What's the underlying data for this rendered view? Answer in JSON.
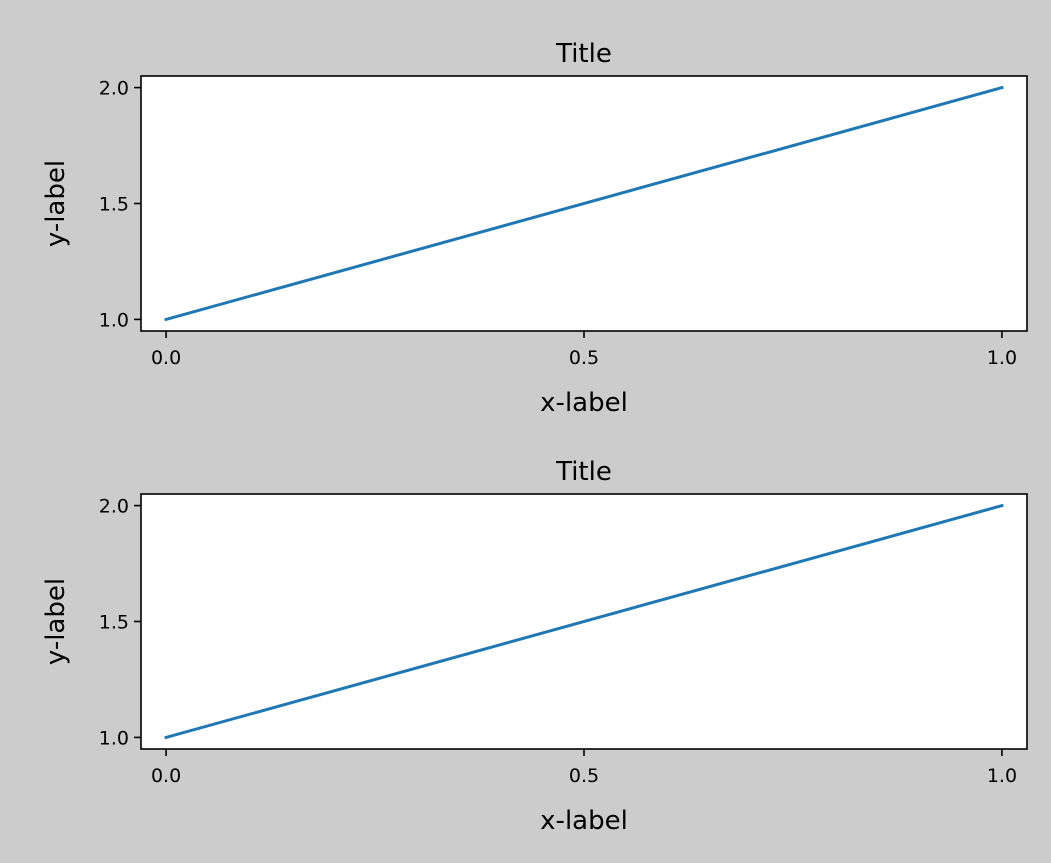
{
  "figure": {
    "background_color": "#cccccc",
    "axes_background_color": "#ffffff"
  },
  "chart_data": [
    {
      "type": "line",
      "title": "Title",
      "xlabel": "x-label",
      "ylabel": "y-label",
      "xlim": [
        -0.03,
        1.03
      ],
      "ylim": [
        0.95,
        2.05
      ],
      "xticks": [
        0.0,
        0.5,
        1.0
      ],
      "xtick_labels": [
        "0.0",
        "0.5",
        "1.0"
      ],
      "yticks": [
        1.0,
        1.5,
        2.0
      ],
      "ytick_labels": [
        "1.0",
        "1.5",
        "2.0"
      ],
      "grid": false,
      "series": [
        {
          "x": [
            0,
            1
          ],
          "y": [
            1,
            2
          ],
          "color": "#1f77b4"
        }
      ]
    },
    {
      "type": "line",
      "title": "Title",
      "xlabel": "x-label",
      "ylabel": "y-label",
      "xlim": [
        -0.03,
        1.03
      ],
      "ylim": [
        0.95,
        2.05
      ],
      "xticks": [
        0.0,
        0.5,
        1.0
      ],
      "xtick_labels": [
        "0.0",
        "0.5",
        "1.0"
      ],
      "yticks": [
        1.0,
        1.5,
        2.0
      ],
      "ytick_labels": [
        "1.0",
        "1.5",
        "2.0"
      ],
      "grid": false,
      "series": [
        {
          "x": [
            0,
            1
          ],
          "y": [
            1,
            2
          ],
          "color": "#1f77b4"
        }
      ]
    }
  ]
}
